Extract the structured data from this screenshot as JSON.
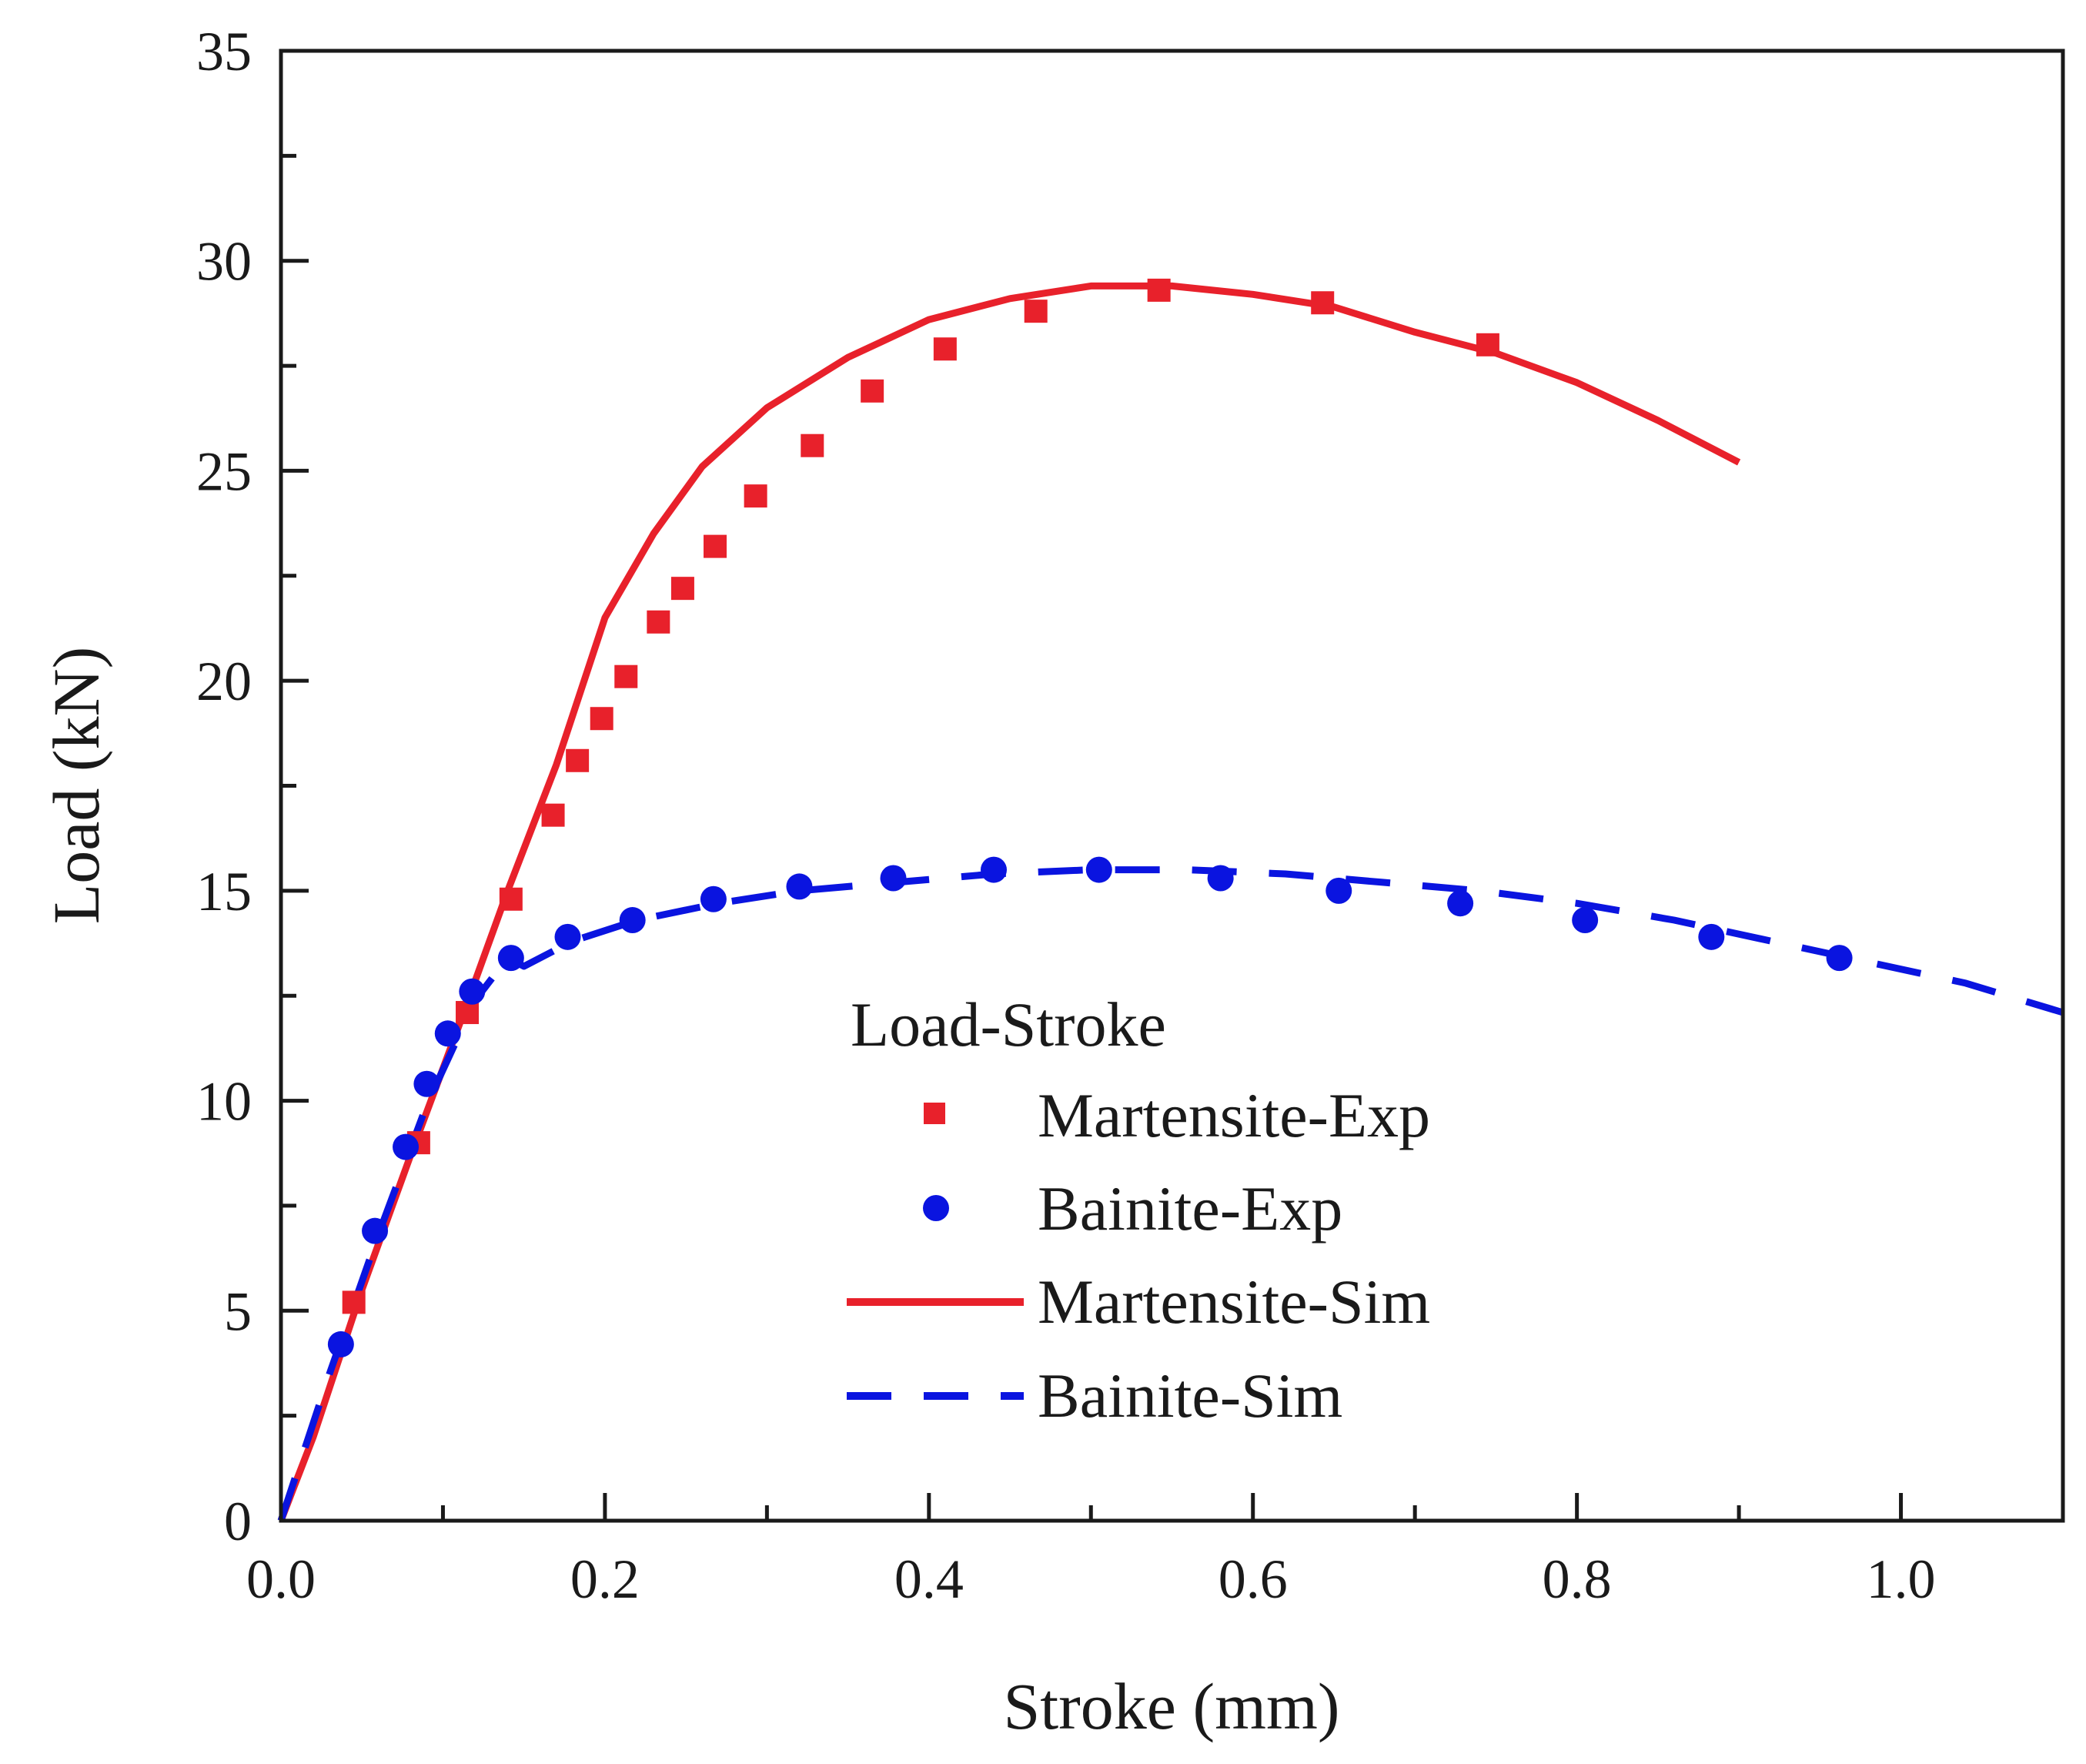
{
  "chart_data": {
    "type": "line",
    "title": "",
    "xlabel": "Stroke (mm)",
    "ylabel": "Load (kN)",
    "xlim": [
      0,
      1.1
    ],
    "ylim": [
      0,
      35
    ],
    "x_ticks": [
      0.0,
      0.2,
      0.4,
      0.6,
      0.8,
      1.0
    ],
    "x_tick_labels": [
      "0.0",
      "0.2",
      "0.4",
      "0.6",
      "0.8",
      "1.0"
    ],
    "y_ticks": [
      0,
      5,
      10,
      15,
      20,
      25,
      30,
      35
    ],
    "y_tick_labels": [
      "0",
      "5",
      "10",
      "15",
      "20",
      "25",
      "30",
      "35"
    ],
    "grid": false,
    "legend": {
      "title": "Load-Stroke",
      "position": "center-right"
    },
    "series": [
      {
        "name": "Martensite-Exp",
        "style": "square-markers",
        "color": "#e8212b",
        "x": [
          0.045,
          0.085,
          0.115,
          0.142,
          0.168,
          0.183,
          0.198,
          0.213,
          0.233,
          0.248,
          0.268,
          0.293,
          0.328,
          0.365,
          0.41,
          0.466,
          0.542,
          0.643,
          0.745
        ],
        "y": [
          5.2,
          9.0,
          12.1,
          14.8,
          16.8,
          18.1,
          19.1,
          20.1,
          21.4,
          22.2,
          23.2,
          24.4,
          25.6,
          26.9,
          27.9,
          28.8,
          29.3,
          29.0,
          28.0
        ]
      },
      {
        "name": "Bainite-Exp",
        "style": "circle-markers",
        "color": "#0a14e0",
        "x": [
          0.037,
          0.058,
          0.077,
          0.09,
          0.103,
          0.118,
          0.142,
          0.177,
          0.217,
          0.267,
          0.32,
          0.378,
          0.44,
          0.505,
          0.58,
          0.653,
          0.728,
          0.805,
          0.883,
          0.962
        ],
        "y": [
          4.2,
          6.9,
          8.9,
          10.4,
          11.6,
          12.6,
          13.4,
          13.9,
          14.3,
          14.8,
          15.1,
          15.3,
          15.5,
          15.5,
          15.3,
          15.0,
          14.7,
          14.3,
          13.9,
          13.4
        ]
      },
      {
        "name": "Martensite-Sim",
        "style": "solid-line",
        "color": "#e8212b",
        "x": [
          0.0,
          0.02,
          0.05,
          0.08,
          0.11,
          0.14,
          0.17,
          0.2,
          0.23,
          0.26,
          0.3,
          0.35,
          0.4,
          0.45,
          0.5,
          0.55,
          0.6,
          0.65,
          0.7,
          0.75,
          0.8,
          0.85,
          0.9
        ],
        "y": [
          0.0,
          2.0,
          5.5,
          8.7,
          11.8,
          15.0,
          18.0,
          21.5,
          23.5,
          25.1,
          26.5,
          27.7,
          28.6,
          29.1,
          29.4,
          29.4,
          29.2,
          28.9,
          28.3,
          27.8,
          27.1,
          26.2,
          25.2
        ]
      },
      {
        "name": "Bainite-Sim",
        "style": "dashed-line",
        "color": "#0a14e0",
        "x": [
          0.0,
          0.03,
          0.06,
          0.09,
          0.12,
          0.14,
          0.15,
          0.18,
          0.22,
          0.27,
          0.32,
          0.38,
          0.44,
          0.5,
          0.56,
          0.62,
          0.68,
          0.74,
          0.8,
          0.86,
          0.92,
          0.98,
          1.04,
          1.1
        ],
        "y": [
          0.0,
          3.5,
          6.8,
          9.9,
          12.4,
          13.4,
          13.2,
          13.8,
          14.3,
          14.7,
          15.0,
          15.2,
          15.4,
          15.5,
          15.5,
          15.4,
          15.2,
          15.0,
          14.7,
          14.3,
          13.8,
          13.3,
          12.8,
          12.1
        ]
      }
    ]
  }
}
